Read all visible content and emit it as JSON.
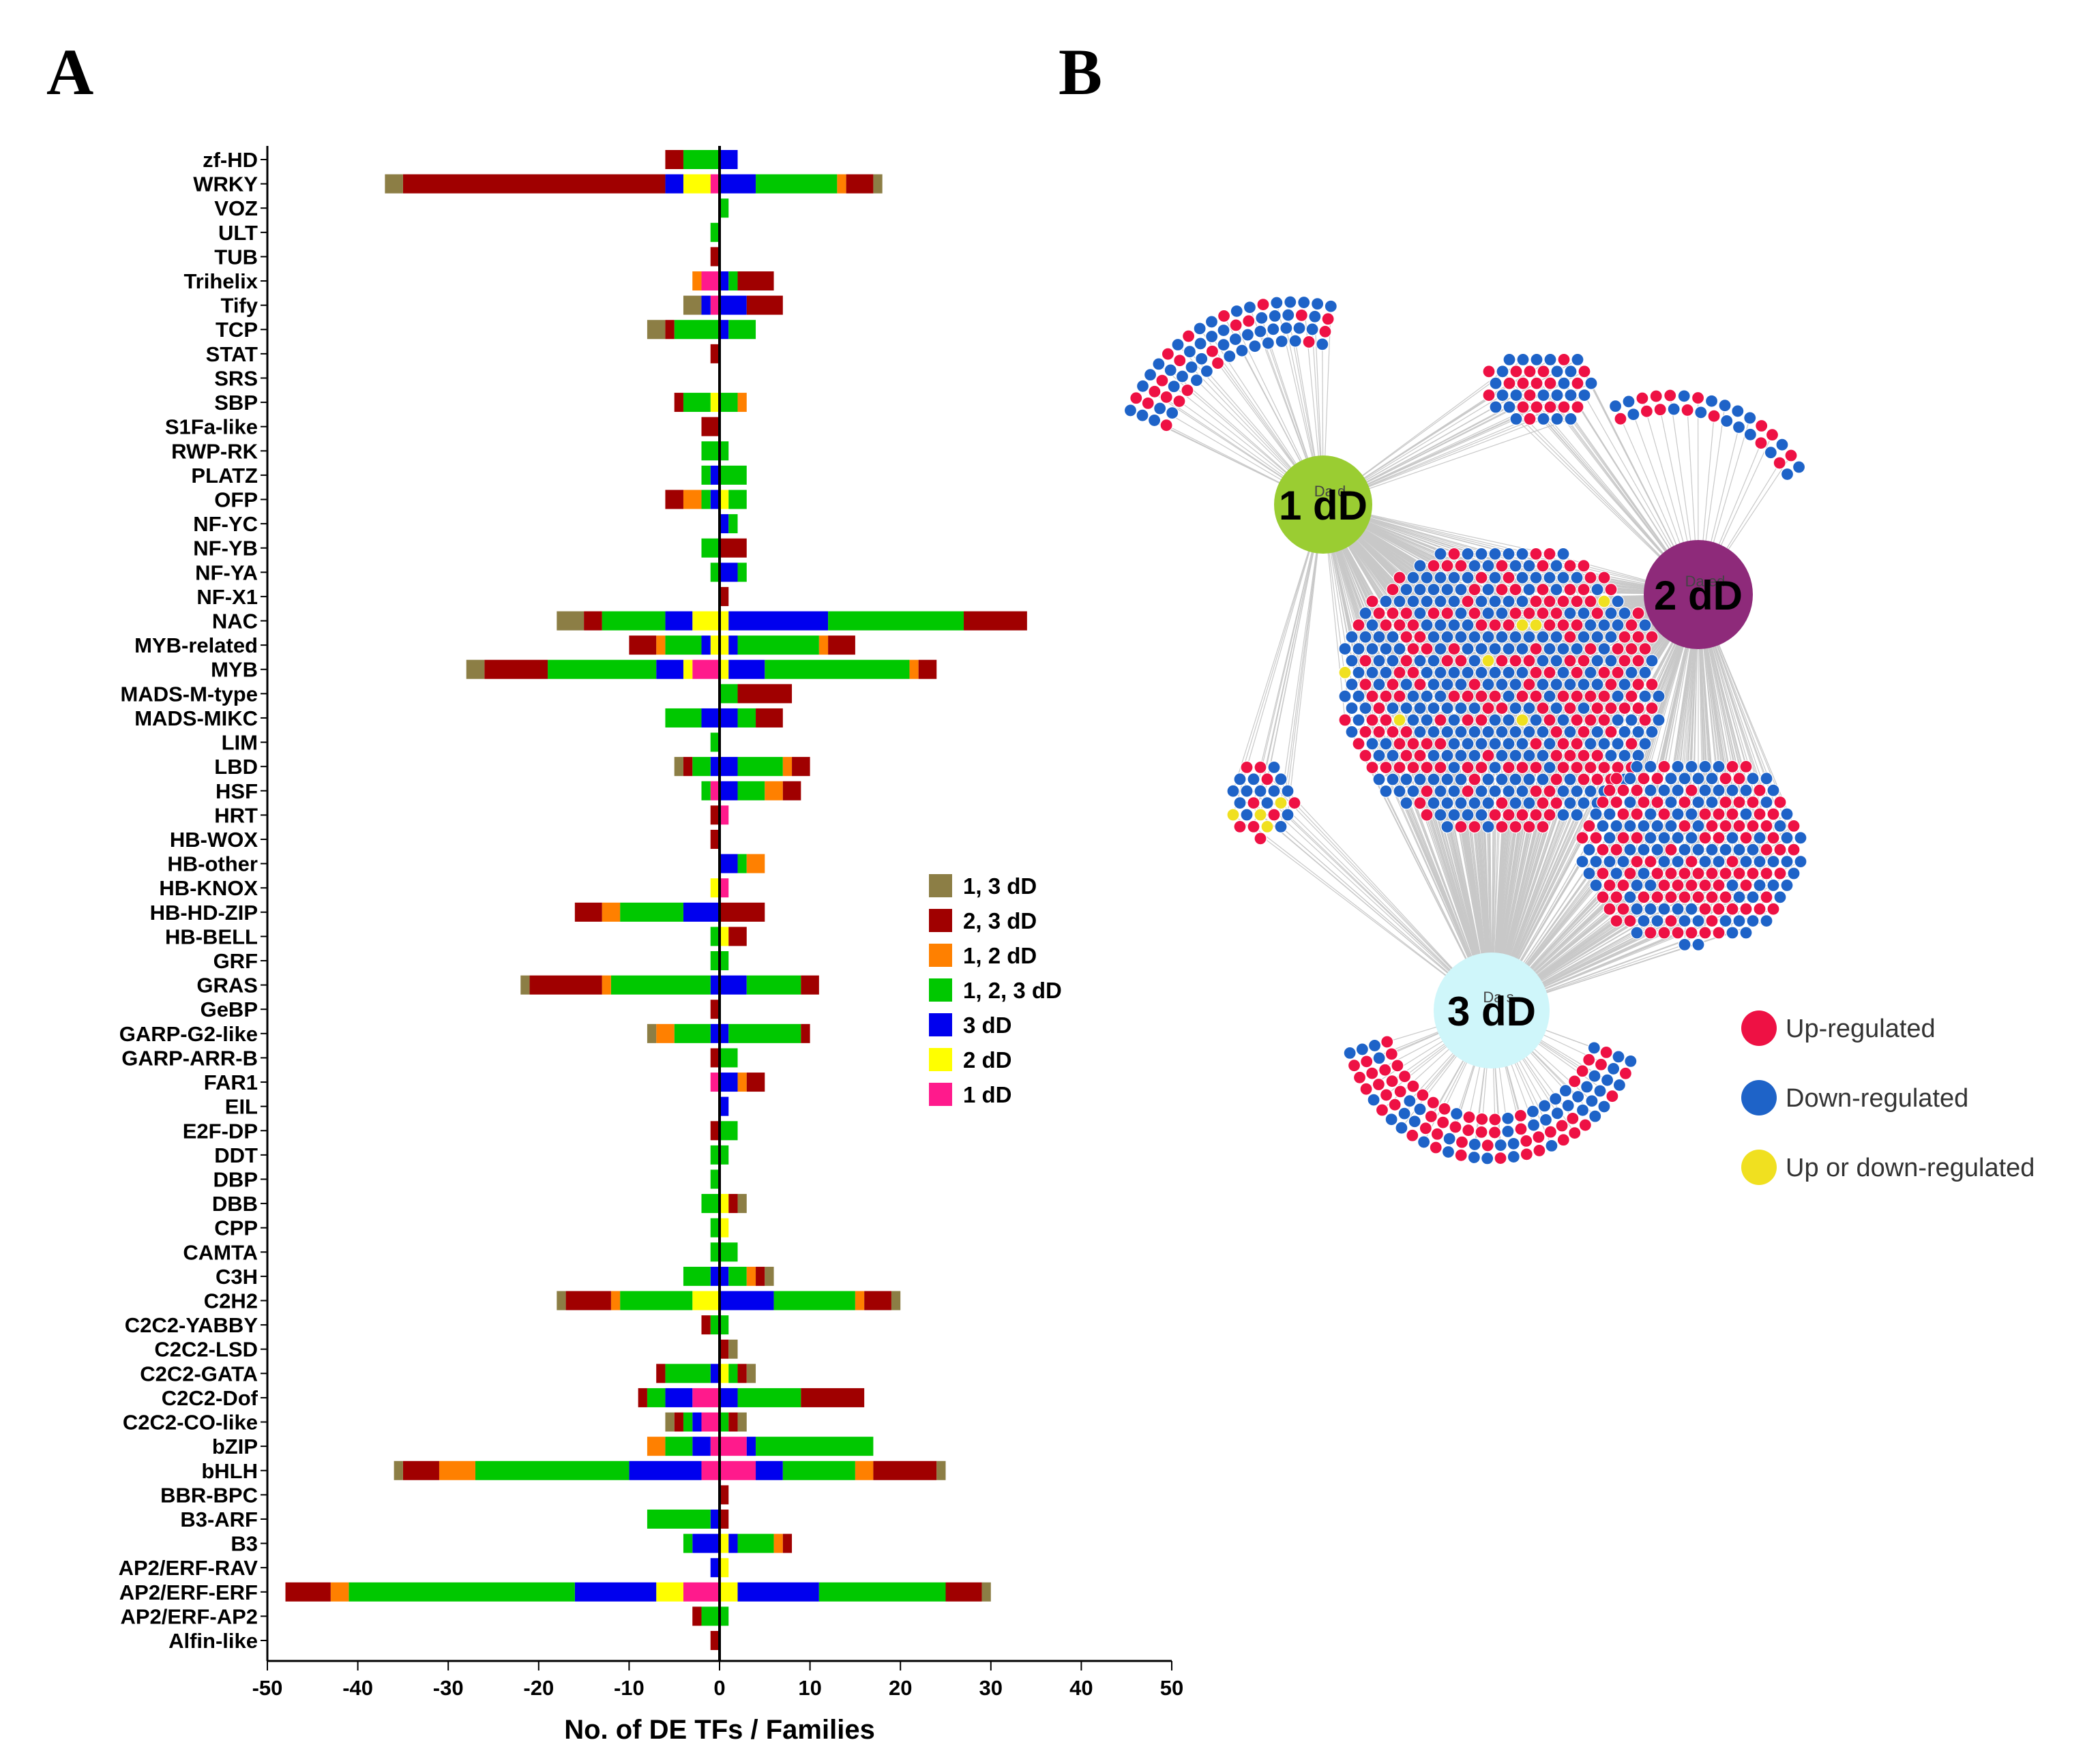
{
  "panels": {
    "a_label": "A",
    "b_label": "B"
  },
  "colors": {
    "1, 3 dD": "#8C7E45",
    "2, 3 dD": "#A00000",
    "1, 2 dD": "#FF8000",
    "1, 2, 3 dD": "#00C800",
    "3 dD": "#0000EE",
    "2 dD": "#FFFF00",
    "1 dD": "#FF1A8C"
  },
  "chart_data": [
    {
      "type": "bar",
      "orientation": "horizontal-diverging",
      "title": "",
      "xlabel": "No. of DE TFs / Families",
      "ylabel": "",
      "xlim": [
        -50,
        50
      ],
      "xticks": [
        -50,
        -40,
        -30,
        -20,
        -10,
        0,
        10,
        20,
        30,
        40,
        50
      ],
      "legend": [
        "1, 3 dD",
        "2, 3 dD",
        "1, 2 dD",
        "1, 2, 3 dD",
        "3 dD",
        "2 dD",
        "1 dD"
      ],
      "stack_order": [
        "1 dD",
        "2 dD",
        "3 dD",
        "1, 2, 3 dD",
        "1, 2 dD",
        "2, 3 dD",
        "1, 3 dD"
      ],
      "categories": [
        "zf-HD",
        "WRKY",
        "VOZ",
        "ULT",
        "TUB",
        "Trihelix",
        "Tify",
        "TCP",
        "STAT",
        "SRS",
        "SBP",
        "S1Fa-like",
        "RWP-RK",
        "PLATZ",
        "OFP",
        "NF-YC",
        "NF-YB",
        "NF-YA",
        "NF-X1",
        "NAC",
        "MYB-related",
        "MYB",
        "MADS-M-type",
        "MADS-MIKC",
        "LIM",
        "LBD",
        "HSF",
        "HRT",
        "HB-WOX",
        "HB-other",
        "HB-KNOX",
        "HB-HD-ZIP",
        "HB-BELL",
        "GRF",
        "GRAS",
        "GeBP",
        "GARP-G2-like",
        "GARP-ARR-B",
        "FAR1",
        "EIL",
        "E2F-DP",
        "DDT",
        "DBP",
        "DBB",
        "CPP",
        "CAMTA",
        "C3H",
        "C2H2",
        "C2C2-YABBY",
        "C2C2-LSD",
        "C2C2-GATA",
        "C2C2-Dof",
        "C2C2-CO-like",
        "bZIP",
        "bHLH",
        "BBR-BPC",
        "B3-ARF",
        "B3",
        "AP2/ERF-RAV",
        "AP2/ERF-ERF",
        "AP2/ERF-AP2",
        "Alfin-like"
      ],
      "series_negative": [
        {
          "name": "1 dD",
          "values": [
            0,
            1,
            0,
            0,
            0,
            2,
            1,
            0,
            0,
            0,
            0,
            0,
            0,
            0,
            0,
            0,
            0,
            0,
            0,
            0,
            0,
            3,
            0,
            0,
            0,
            0,
            1,
            0,
            0,
            0,
            0,
            0,
            0,
            0,
            0,
            0,
            0,
            0,
            1,
            0,
            0,
            0,
            0,
            0,
            0,
            0,
            0,
            0,
            0,
            0,
            0,
            3,
            2,
            1,
            2,
            0,
            0,
            0,
            0,
            4,
            0,
            0
          ]
        },
        {
          "name": "2 dD",
          "values": [
            0,
            3,
            0,
            0,
            0,
            0,
            0,
            0,
            0,
            0,
            1,
            0,
            0,
            0,
            0,
            0,
            0,
            0,
            0,
            3,
            1,
            1,
            0,
            0,
            0,
            0,
            0,
            0,
            0,
            0,
            1,
            0,
            0,
            0,
            0,
            0,
            0,
            0,
            0,
            0,
            0,
            0,
            0,
            0,
            0,
            0,
            0,
            3,
            0,
            0,
            0,
            0,
            0,
            0,
            0,
            0,
            0,
            0,
            0,
            3,
            0,
            0
          ]
        },
        {
          "name": "3 dD",
          "values": [
            0,
            2,
            0,
            0,
            0,
            0,
            1,
            0,
            0,
            0,
            0,
            0,
            0,
            1,
            1,
            0,
            0,
            0,
            0,
            3,
            1,
            3,
            0,
            2,
            0,
            1,
            0,
            0,
            0,
            0,
            0,
            4,
            0,
            0,
            1,
            0,
            1,
            0,
            0,
            0,
            0,
            0,
            0,
            0,
            0,
            0,
            1,
            0,
            0,
            0,
            1,
            3,
            1,
            2,
            8,
            0,
            1,
            3,
            1,
            9,
            0,
            0
          ]
        },
        {
          "name": "1, 2, 3 dD",
          "values": [
            4,
            0,
            0,
            1,
            0,
            0,
            0,
            5,
            0,
            0,
            3,
            0,
            2,
            1,
            1,
            0,
            2,
            1,
            0,
            7,
            4,
            12,
            0,
            4,
            1,
            2,
            1,
            0,
            0,
            0,
            0,
            7,
            1,
            1,
            11,
            0,
            4,
            0,
            0,
            0,
            0,
            1,
            1,
            2,
            1,
            1,
            3,
            8,
            1,
            0,
            5,
            2,
            1,
            3,
            17,
            0,
            7,
            1,
            0,
            25,
            2,
            0
          ]
        },
        {
          "name": "1, 2 dD",
          "values": [
            0,
            0,
            0,
            0,
            0,
            1,
            0,
            0,
            0,
            0,
            0,
            0,
            0,
            0,
            2,
            0,
            0,
            0,
            0,
            0,
            1,
            0,
            0,
            0,
            0,
            0,
            0,
            0,
            0,
            0,
            0,
            2,
            0,
            0,
            1,
            0,
            2,
            0,
            0,
            0,
            0,
            0,
            0,
            0,
            0,
            0,
            0,
            1,
            0,
            0,
            0,
            0,
            0,
            2,
            4,
            0,
            0,
            0,
            0,
            2,
            0,
            0
          ]
        },
        {
          "name": "2, 3 dD",
          "values": [
            2,
            29,
            0,
            0,
            1,
            0,
            0,
            1,
            1,
            0,
            1,
            2,
            0,
            0,
            2,
            0,
            0,
            0,
            0,
            2,
            3,
            7,
            0,
            0,
            0,
            1,
            0,
            1,
            1,
            0,
            0,
            3,
            0,
            0,
            8,
            1,
            0,
            1,
            0,
            0,
            1,
            0,
            0,
            0,
            0,
            0,
            0,
            5,
            1,
            0,
            1,
            1,
            1,
            0,
            4,
            0,
            0,
            0,
            0,
            5,
            1,
            1
          ]
        },
        {
          "name": "1, 3 dD",
          "values": [
            0,
            2,
            0,
            0,
            0,
            0,
            2,
            2,
            0,
            0,
            0,
            0,
            0,
            0,
            0,
            0,
            0,
            0,
            0,
            3,
            0,
            2,
            0,
            0,
            0,
            1,
            0,
            0,
            0,
            0,
            0,
            0,
            0,
            0,
            1,
            0,
            1,
            0,
            0,
            0,
            0,
            0,
            0,
            0,
            0,
            0,
            0,
            1,
            0,
            0,
            0,
            0,
            1,
            0,
            1,
            0,
            0,
            0,
            0,
            0,
            0,
            0
          ]
        }
      ],
      "series_positive": [
        {
          "name": "1 dD",
          "values": [
            0,
            0,
            0,
            0,
            0,
            0,
            0,
            0,
            0,
            0,
            0,
            0,
            0,
            0,
            0,
            0,
            0,
            0,
            0,
            0,
            0,
            0,
            0,
            0,
            0,
            0,
            0,
            1,
            0,
            0,
            1,
            0,
            0,
            0,
            0,
            0,
            0,
            0,
            0,
            0,
            0,
            0,
            0,
            0,
            0,
            0,
            0,
            0,
            0,
            0,
            0,
            0,
            0,
            3,
            4,
            0,
            0,
            0,
            0,
            0,
            0,
            0
          ]
        },
        {
          "name": "2 dD",
          "values": [
            0,
            0,
            0,
            0,
            0,
            0,
            0,
            0,
            0,
            0,
            0,
            0,
            0,
            0,
            1,
            0,
            0,
            0,
            0,
            1,
            1,
            1,
            0,
            0,
            0,
            0,
            0,
            0,
            0,
            0,
            0,
            0,
            1,
            0,
            0,
            0,
            0,
            0,
            0,
            0,
            0,
            0,
            0,
            1,
            1,
            0,
            0,
            0,
            0,
            0,
            1,
            0,
            0,
            0,
            0,
            0,
            0,
            1,
            1,
            2,
            0,
            0
          ]
        },
        {
          "name": "3 dD",
          "values": [
            2,
            4,
            0,
            0,
            0,
            1,
            3,
            1,
            0,
            0,
            0,
            0,
            0,
            0,
            0,
            1,
            0,
            2,
            0,
            11,
            1,
            4,
            0,
            2,
            0,
            2,
            2,
            0,
            0,
            2,
            0,
            0,
            0,
            0,
            3,
            0,
            1,
            0,
            2,
            1,
            0,
            0,
            0,
            0,
            0,
            0,
            1,
            6,
            0,
            0,
            0,
            2,
            0,
            1,
            3,
            0,
            0,
            1,
            0,
            9,
            0,
            0
          ]
        },
        {
          "name": "1, 2, 3 dD",
          "values": [
            0,
            9,
            1,
            0,
            0,
            1,
            0,
            3,
            0,
            0,
            2,
            0,
            1,
            3,
            2,
            1,
            0,
            1,
            0,
            15,
            9,
            16,
            2,
            2,
            0,
            5,
            3,
            0,
            0,
            1,
            0,
            0,
            0,
            1,
            6,
            0,
            8,
            2,
            0,
            0,
            2,
            1,
            0,
            0,
            0,
            2,
            2,
            9,
            1,
            0,
            1,
            7,
            1,
            13,
            8,
            0,
            0,
            4,
            0,
            14,
            1,
            0
          ]
        },
        {
          "name": "1, 2 dD",
          "values": [
            0,
            1,
            0,
            0,
            0,
            0,
            0,
            0,
            0,
            0,
            1,
            0,
            0,
            0,
            0,
            0,
            0,
            0,
            0,
            0,
            1,
            1,
            0,
            0,
            0,
            1,
            2,
            0,
            0,
            2,
            0,
            0,
            0,
            0,
            0,
            0,
            0,
            0,
            1,
            0,
            0,
            0,
            0,
            0,
            0,
            0,
            1,
            1,
            0,
            0,
            0,
            0,
            0,
            0,
            2,
            0,
            0,
            1,
            0,
            0,
            0,
            0
          ]
        },
        {
          "name": "2, 3 dD",
          "values": [
            0,
            3,
            0,
            0,
            0,
            4,
            4,
            0,
            0,
            0,
            0,
            0,
            0,
            0,
            0,
            0,
            3,
            0,
            1,
            7,
            3,
            2,
            6,
            3,
            0,
            2,
            2,
            0,
            0,
            0,
            0,
            5,
            2,
            0,
            2,
            0,
            1,
            0,
            2,
            0,
            0,
            0,
            0,
            1,
            0,
            0,
            1,
            3,
            0,
            1,
            1,
            7,
            1,
            0,
            7,
            1,
            1,
            1,
            0,
            4,
            0,
            0
          ]
        },
        {
          "name": "1, 3 dD",
          "values": [
            0,
            1,
            0,
            0,
            0,
            0,
            0,
            0,
            0,
            0,
            0,
            0,
            0,
            0,
            0,
            0,
            0,
            0,
            0,
            0,
            0,
            0,
            0,
            0,
            0,
            0,
            0,
            0,
            0,
            0,
            0,
            0,
            0,
            0,
            0,
            0,
            0,
            0,
            0,
            0,
            0,
            0,
            0,
            1,
            0,
            0,
            1,
            1,
            0,
            1,
            1,
            0,
            1,
            0,
            1,
            0,
            0,
            0,
            0,
            1,
            0,
            0
          ]
        }
      ]
    },
    {
      "type": "network",
      "nodes": [
        {
          "id": "1dD",
          "label": "1 dD",
          "sublabel": "Da    d",
          "color": "#9ACD32"
        },
        {
          "id": "2dD",
          "label": "2 dD",
          "sublabel": "Da   ed",
          "color": "#8E2A7A"
        },
        {
          "id": "3dD",
          "label": "3 dD",
          "sublabel": "Da    s",
          "color": "#CFF6FA"
        }
      ],
      "legend": [
        {
          "label": "Up-regulated",
          "color": "#EE1144"
        },
        {
          "label": "Down-regulated",
          "color": "#1E63C8"
        },
        {
          "label": "Up or down-regulated",
          "color": "#F0E020"
        }
      ]
    }
  ]
}
